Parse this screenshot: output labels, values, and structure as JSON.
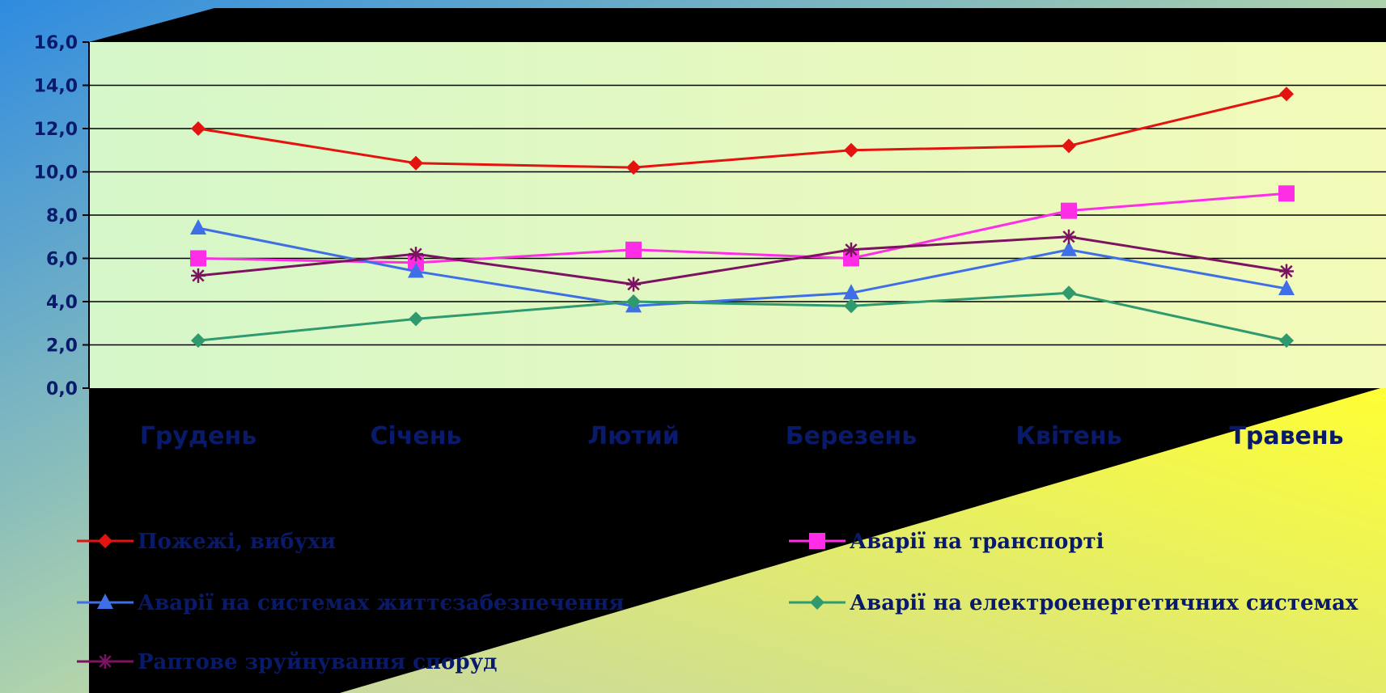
{
  "chart_data": {
    "type": "line",
    "categories": [
      "Грудень",
      "Січень",
      "Лютий",
      "Березень",
      "Квітень",
      "Травень"
    ],
    "ylim": [
      0,
      16
    ],
    "yticks": [
      "0,0",
      "2,0",
      "4,0",
      "6,0",
      "8,0",
      "10,0",
      "12,0",
      "14,0",
      "16,0"
    ],
    "grid": true,
    "legend_position": "bottom",
    "series": [
      {
        "name": "Пожежі, вибухи",
        "values": [
          12.0,
          10.4,
          10.2,
          11.0,
          11.2,
          13.6
        ],
        "color": "#e3130f",
        "marker": "diamond"
      },
      {
        "name": "Аварії на транспорті",
        "values": [
          6.0,
          5.8,
          6.4,
          6.0,
          8.2,
          9.0
        ],
        "color": "#ff2ee6",
        "marker": "square"
      },
      {
        "name": "Аварії на системах життєзабезпечення",
        "values": [
          7.4,
          5.4,
          3.8,
          4.4,
          6.4,
          4.6
        ],
        "color": "#3f6fe6",
        "marker": "triangle"
      },
      {
        "name": "Аварії на електроенергетичних системах",
        "values": [
          2.2,
          3.2,
          4.0,
          3.8,
          4.4,
          2.2
        ],
        "color": "#2f9a6e",
        "marker": "diamond"
      },
      {
        "name": "Раптове зруйнування споруд",
        "values": [
          5.2,
          6.2,
          4.8,
          6.4,
          7.0,
          5.4
        ],
        "color": "#7b1361",
        "marker": "star"
      }
    ]
  },
  "colors": {
    "plot_area": "#e8f9c4",
    "frame": "#000000",
    "text": "#0a1a6b"
  }
}
